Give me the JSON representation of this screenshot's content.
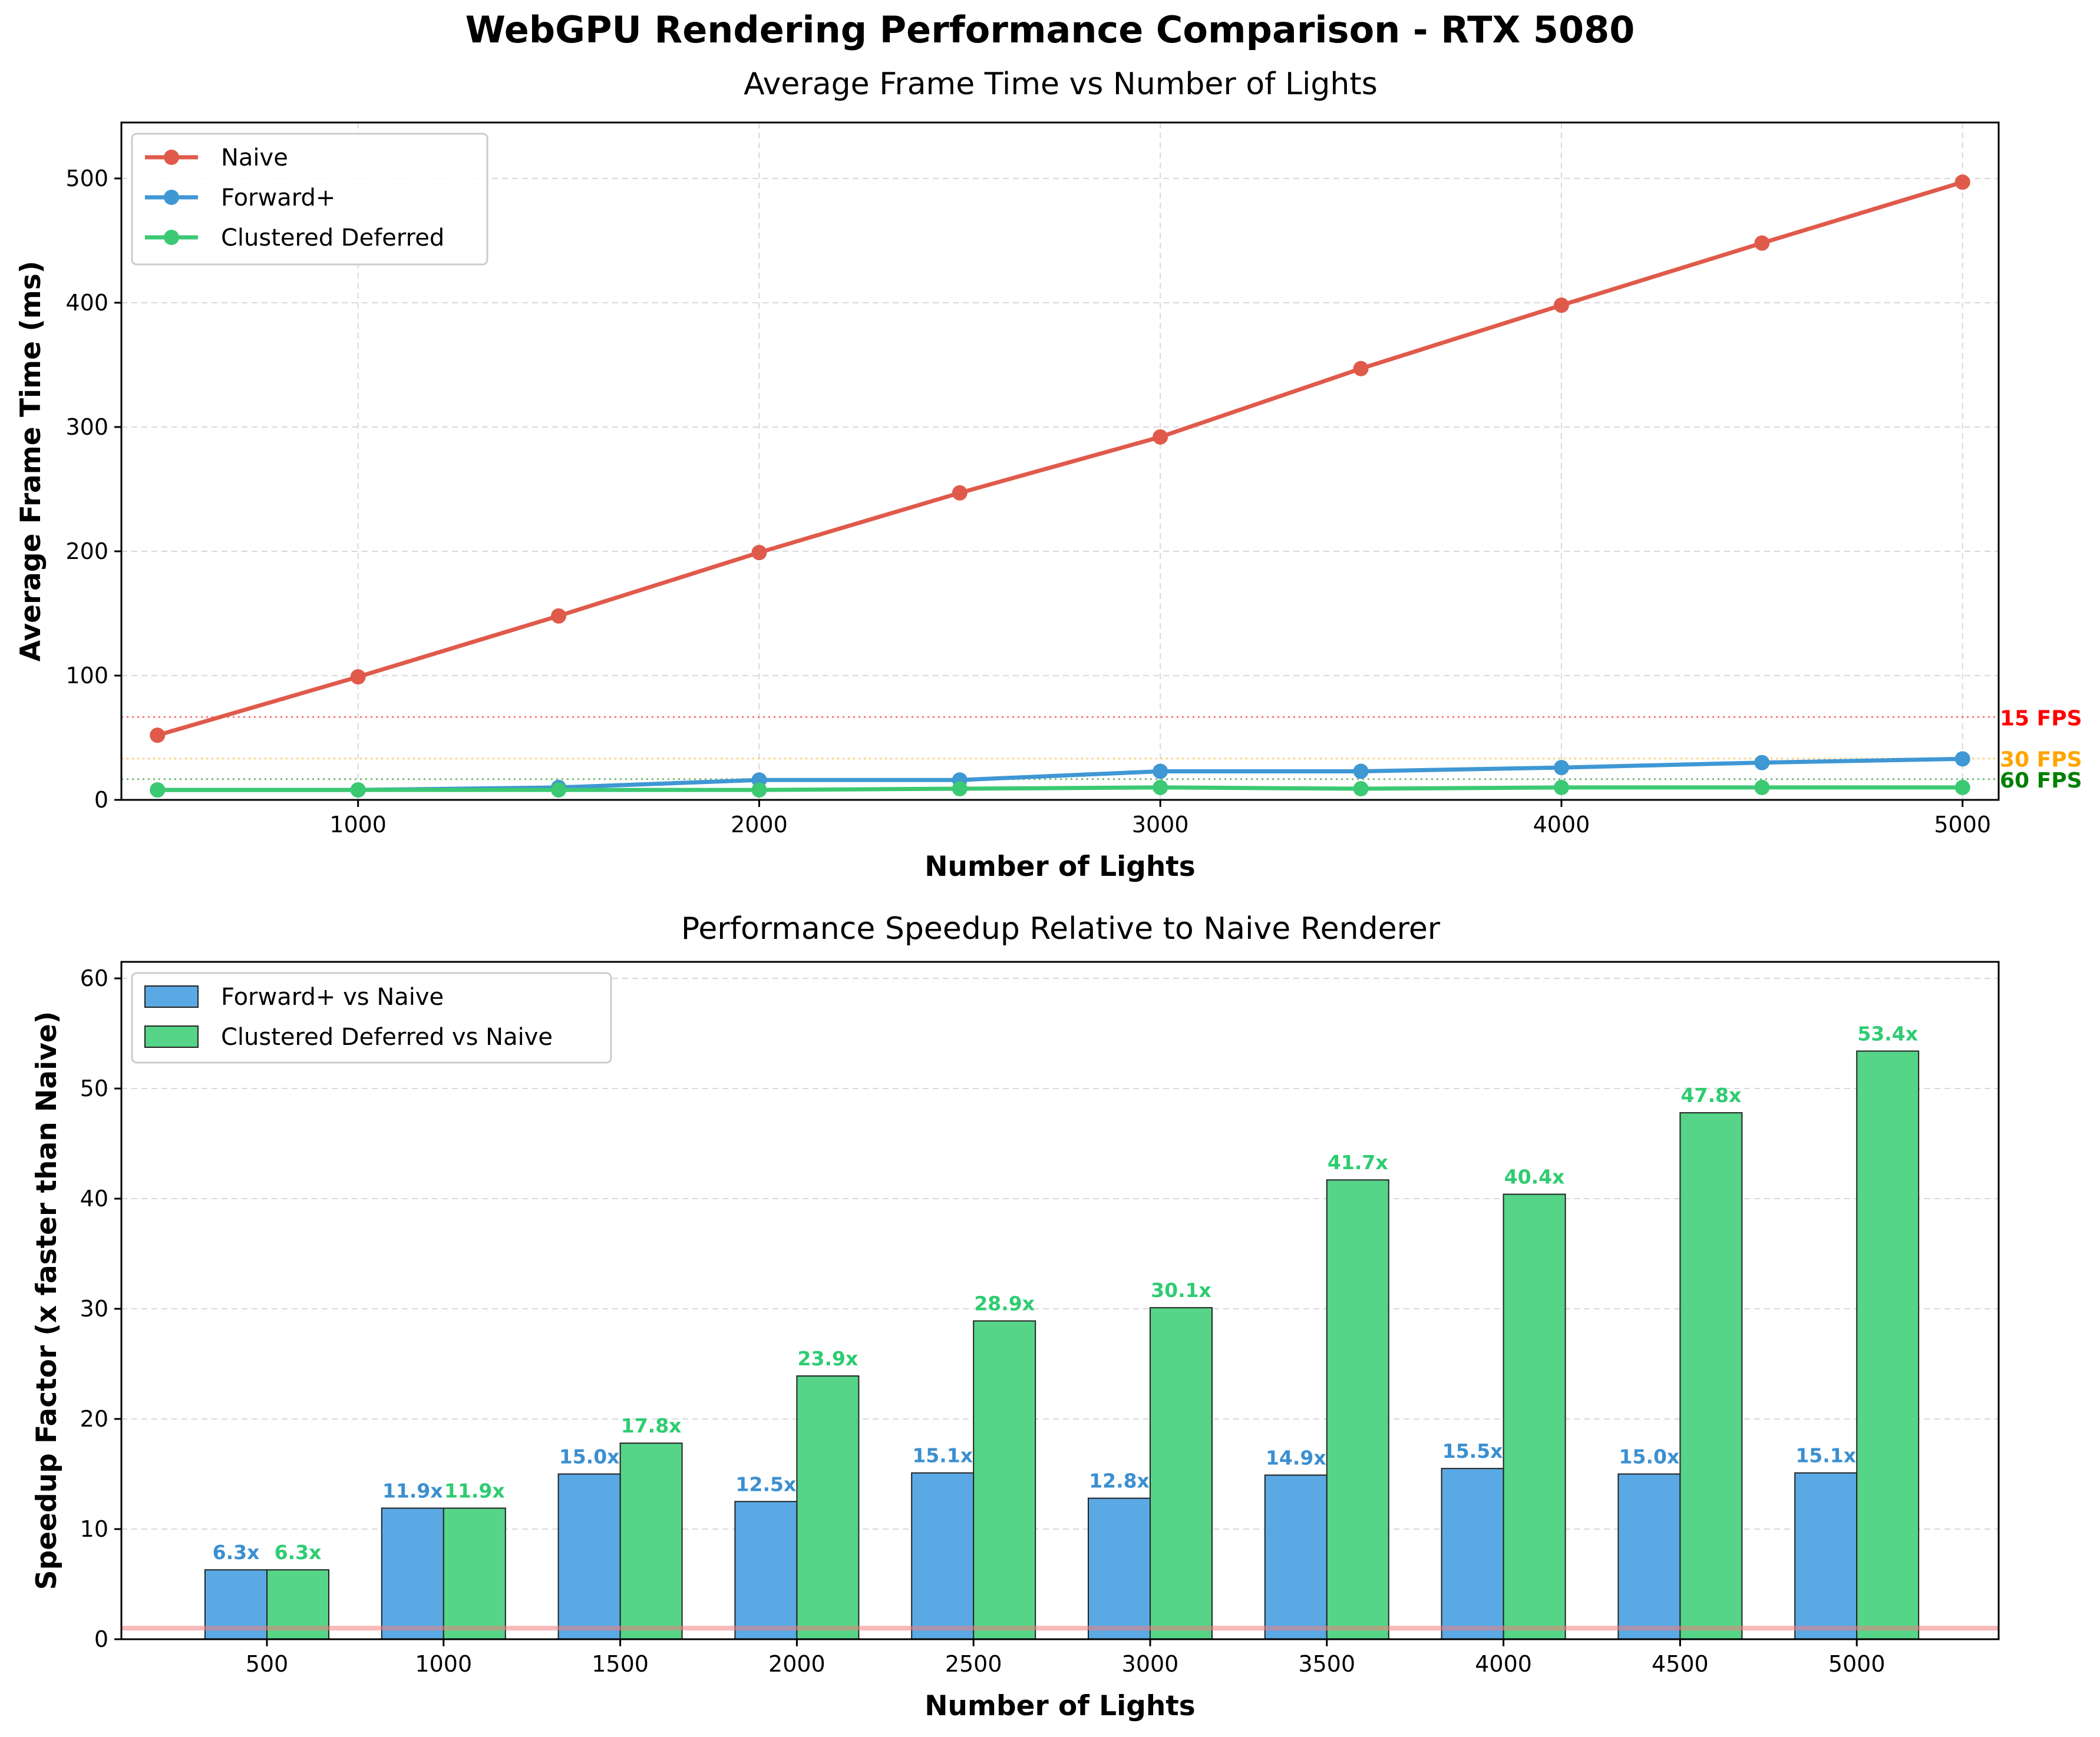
{
  "figure": {
    "suptitle": "WebGPU Rendering Performance Comparison - RTX 5080"
  },
  "chart_data": [
    {
      "type": "line",
      "title": "Average Frame Time vs Number of Lights",
      "xlabel": "Number of Lights",
      "ylabel": "Average Frame Time (ms)",
      "xlim": [
        410,
        5090
      ],
      "ylim": [
        0,
        545
      ],
      "xticks": [
        1000,
        2000,
        3000,
        4000,
        5000
      ],
      "yticks": [
        0,
        100,
        200,
        300,
        400,
        500
      ],
      "grid": true,
      "legend": "top-left",
      "x": [
        500,
        1000,
        1500,
        2000,
        2500,
        3000,
        3500,
        4000,
        4500,
        5000
      ],
      "series": [
        {
          "name": "Naive",
          "color": "#e05a4b",
          "values": [
            52,
            99,
            148,
            199,
            247,
            292,
            347,
            398,
            448,
            497
          ]
        },
        {
          "name": "Forward+",
          "color": "#3f97d4",
          "values": [
            8,
            8,
            10,
            16,
            16,
            23,
            23,
            26,
            30,
            33
          ]
        },
        {
          "name": "Clustered Deferred",
          "color": "#3cc973",
          "values": [
            8,
            8,
            8,
            8,
            9,
            10,
            9,
            10,
            10,
            10
          ]
        }
      ],
      "reference_lines": [
        {
          "label": "15 FPS",
          "value": 66.7,
          "color": "#ff0000"
        },
        {
          "label": "30 FPS",
          "value": 33.3,
          "color": "#ffa500"
        },
        {
          "label": "60 FPS",
          "value": 16.7,
          "color": "#008000"
        }
      ]
    },
    {
      "type": "bar",
      "title": "Performance Speedup Relative to Naive Renderer",
      "xlabel": "Number of Lights",
      "ylabel": "Speedup Factor (x faster than Naive)",
      "ylim": [
        0,
        61.5
      ],
      "yticks": [
        0,
        10,
        20,
        30,
        40,
        50,
        60
      ],
      "grid": true,
      "legend": "top-left",
      "categories": [
        "500",
        "1000",
        "1500",
        "2000",
        "2500",
        "3000",
        "3500",
        "4000",
        "4500",
        "5000"
      ],
      "series": [
        {
          "name": "Forward+ vs Naive",
          "color": "#5aa9e4",
          "label_color": "#3b8fd0",
          "values": [
            6.3,
            11.9,
            15.0,
            12.5,
            15.1,
            12.8,
            14.9,
            15.5,
            15.0,
            15.1
          ],
          "labels": [
            "6.3x",
            "11.9x",
            "15.0x",
            "12.5x",
            "15.1x",
            "12.8x",
            "14.9x",
            "15.5x",
            "15.0x",
            "15.1x"
          ]
        },
        {
          "name": "Clustered Deferred vs Naive",
          "color": "#56d487",
          "label_color": "#2ecc71",
          "values": [
            6.3,
            11.9,
            17.8,
            23.9,
            28.9,
            30.1,
            41.7,
            40.4,
            47.8,
            53.4
          ],
          "labels": [
            "6.3x",
            "11.9x",
            "17.8x",
            "23.9x",
            "28.9x",
            "30.1x",
            "41.7x",
            "40.4x",
            "47.8x",
            "53.4x"
          ]
        }
      ],
      "baseline": {
        "value": 1.0,
        "color": "#f08080"
      }
    }
  ]
}
